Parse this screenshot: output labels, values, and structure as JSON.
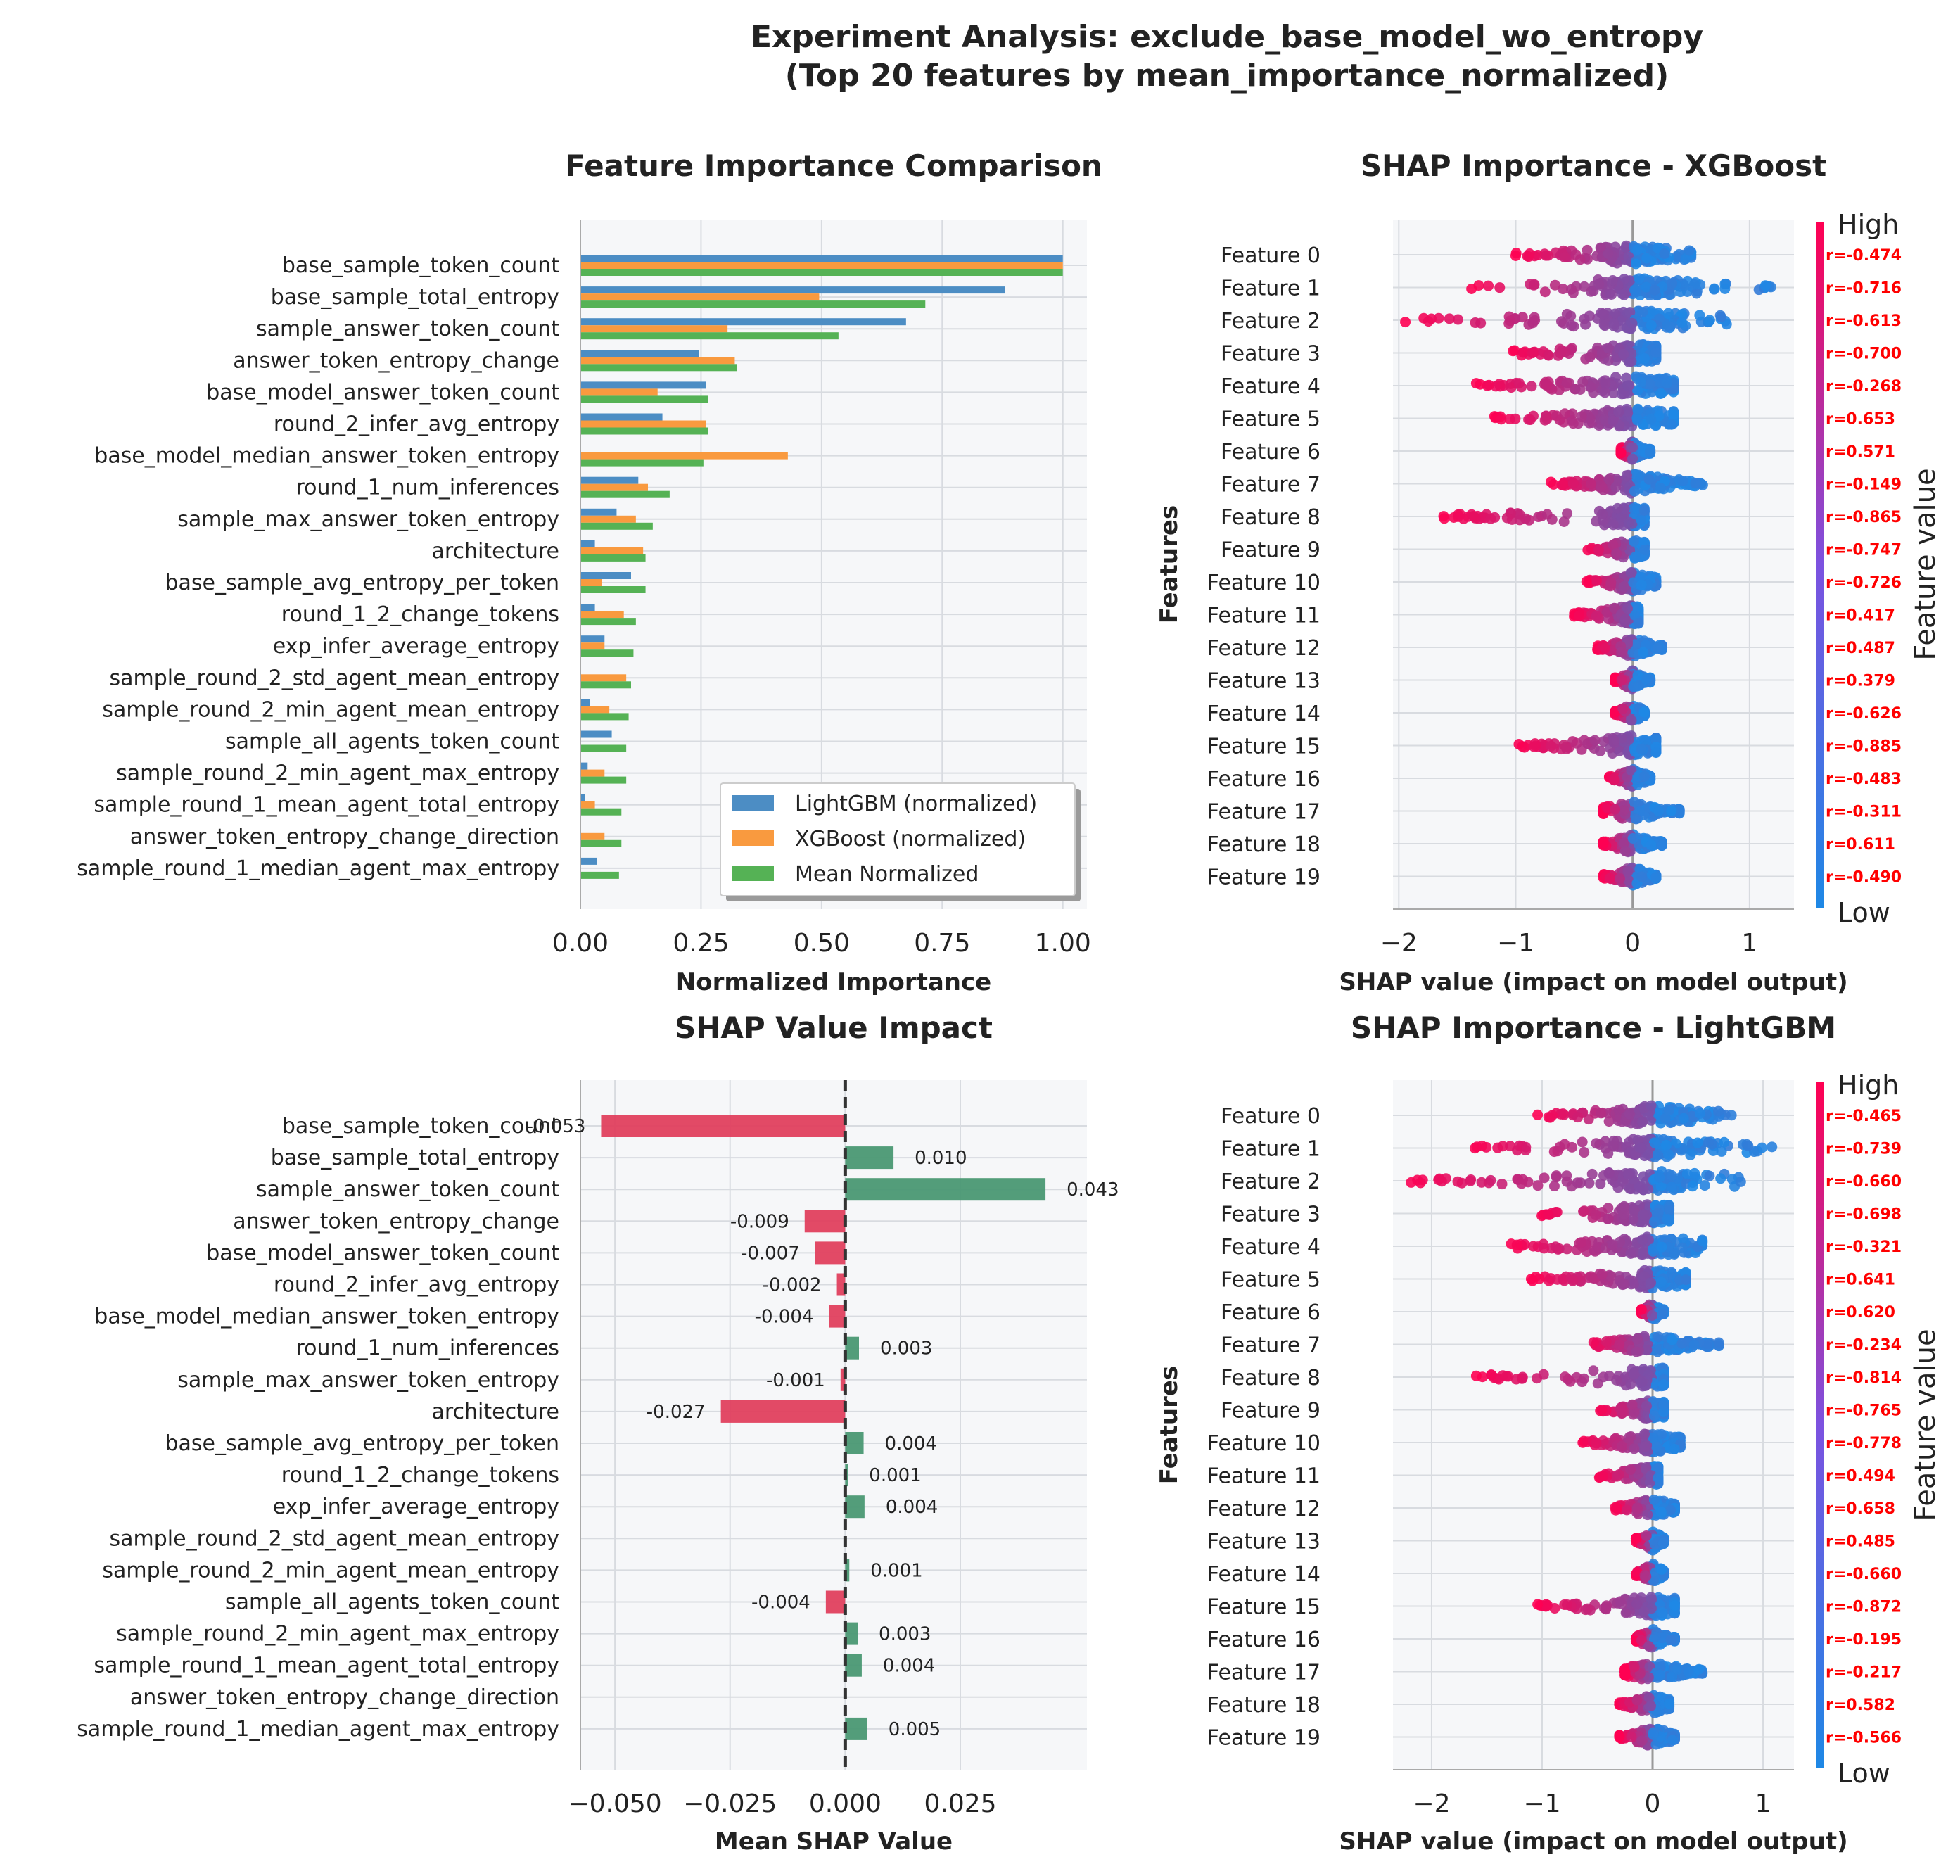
{
  "figure": {
    "title_line1": "Experiment Analysis: exclude_base_model_wo_entropy",
    "title_line2": "(Top 20 features by mean_importance_normalized)"
  },
  "colors": {
    "lightgbm": "#4c8dc4",
    "xgboost": "#f99a3f",
    "mean": "#55b255",
    "positive": "#4a9873",
    "negative": "#e0405e",
    "high": "#ff0052",
    "low": "#1e88e5",
    "panel_bg": "#f6f7f9",
    "grid": "#d8dbe0"
  },
  "chart_data": [
    {
      "id": "importance",
      "type": "bar",
      "orientation": "horizontal",
      "title": "Feature Importance Comparison",
      "xlabel": "Normalized Importance",
      "ylabel": "",
      "xlim": [
        0,
        1.05
      ],
      "xticks": [
        0,
        0.25,
        0.5,
        0.75,
        1.0
      ],
      "xtick_labels": [
        "0.00",
        "0.25",
        "0.50",
        "0.75",
        "1.00"
      ],
      "categories": [
        "base_sample_token_count",
        "base_sample_total_entropy",
        "sample_answer_token_count",
        "answer_token_entropy_change",
        "base_model_answer_token_count",
        "round_2_infer_avg_entropy",
        "base_model_median_answer_token_entropy",
        "round_1_num_inferences",
        "sample_max_answer_token_entropy",
        "architecture",
        "base_sample_avg_entropy_per_token",
        "round_1_2_change_tokens",
        "exp_infer_average_entropy",
        "sample_round_2_std_agent_mean_entropy",
        "sample_round_2_min_agent_mean_entropy",
        "sample_all_agents_token_count",
        "sample_round_2_min_agent_max_entropy",
        "sample_round_1_mean_agent_total_entropy",
        "answer_token_entropy_change_direction",
        "sample_round_1_median_agent_max_entropy"
      ],
      "series": [
        {
          "name": "LightGBM (normalized)",
          "values": [
            1.0,
            0.88,
            0.675,
            0.245,
            0.26,
            0.17,
            0.0,
            0.12,
            0.075,
            0.03,
            0.105,
            0.03,
            0.05,
            0.0,
            0.02,
            0.065,
            0.015,
            0.01,
            0.0,
            0.035
          ]
        },
        {
          "name": "XGBoost (normalized)",
          "values": [
            1.0,
            0.495,
            0.305,
            0.32,
            0.16,
            0.26,
            0.43,
            0.14,
            0.115,
            0.13,
            0.045,
            0.09,
            0.05,
            0.095,
            0.06,
            0.0,
            0.05,
            0.03,
            0.05,
            0.0
          ]
        },
        {
          "name": "Mean Normalized",
          "values": [
            1.0,
            0.715,
            0.535,
            0.325,
            0.265,
            0.265,
            0.255,
            0.185,
            0.15,
            0.135,
            0.135,
            0.115,
            0.11,
            0.105,
            0.1,
            0.095,
            0.095,
            0.085,
            0.085,
            0.08
          ]
        }
      ],
      "legend_position": "lower-right"
    },
    {
      "id": "shap_xgb",
      "type": "scatter",
      "subtype": "shap-beeswarm",
      "title": "SHAP Importance - XGBoost",
      "xlabel": "SHAP value (impact on model output)",
      "ylabel": "Features",
      "xlim": [
        -2.05,
        1.38
      ],
      "xticks": [
        -2,
        -1,
        0,
        1
      ],
      "xtick_labels": [
        "−2",
        "−1",
        "0",
        "1"
      ],
      "features": [
        "Feature 0",
        "Feature 1",
        "Feature 2",
        "Feature 3",
        "Feature 4",
        "Feature 5",
        "Feature 6",
        "Feature 7",
        "Feature 8",
        "Feature 9",
        "Feature 10",
        "Feature 11",
        "Feature 12",
        "Feature 13",
        "Feature 14",
        "Feature 15",
        "Feature 16",
        "Feature 17",
        "Feature 18",
        "Feature 19"
      ],
      "correlation_labels": [
        "r=-0.474",
        "r=-0.716",
        "r=-0.613",
        "r=-0.700",
        "r=-0.268",
        "r=0.653",
        "r=0.571",
        "r=-0.149",
        "r=-0.865",
        "r=-0.747",
        "r=-0.726",
        "r=0.417",
        "r=0.487",
        "r=0.379",
        "r=-0.626",
        "r=-0.885",
        "r=-0.483",
        "r=-0.311",
        "r=0.611",
        "r=-0.490"
      ],
      "ranges": [
        [
          -1.0,
          0.5
        ],
        [
          -1.4,
          1.25
        ],
        [
          -1.95,
          0.9
        ],
        [
          -1.05,
          0.2
        ],
        [
          -1.35,
          0.35
        ],
        [
          -1.2,
          0.35
        ],
        [
          -0.1,
          0.15
        ],
        [
          -0.7,
          0.6
        ],
        [
          -1.65,
          0.1
        ],
        [
          -0.4,
          0.1
        ],
        [
          -0.4,
          0.2
        ],
        [
          -0.5,
          0.05
        ],
        [
          -0.3,
          0.25
        ],
        [
          -0.15,
          0.15
        ],
        [
          -0.15,
          0.1
        ],
        [
          -1.0,
          0.2
        ],
        [
          -0.2,
          0.15
        ],
        [
          -0.25,
          0.4
        ],
        [
          -0.25,
          0.25
        ],
        [
          -0.25,
          0.2
        ]
      ],
      "colorbar": {
        "label": "Feature value",
        "high": "High",
        "low": "Low"
      }
    },
    {
      "id": "mean_shap",
      "type": "bar",
      "orientation": "horizontal",
      "title": "SHAP Value Impact",
      "xlabel": "Mean SHAP Value",
      "ylabel": "",
      "xlim": [
        -0.0575,
        0.0525
      ],
      "xticks": [
        -0.05,
        -0.025,
        0.0,
        0.025
      ],
      "xtick_labels": [
        "−0.050",
        "−0.025",
        "0.000",
        "0.025"
      ],
      "categories": [
        "base_sample_token_count",
        "base_sample_total_entropy",
        "sample_answer_token_count",
        "answer_token_entropy_change",
        "base_model_answer_token_count",
        "round_2_infer_avg_entropy",
        "base_model_median_answer_token_entropy",
        "round_1_num_inferences",
        "sample_max_answer_token_entropy",
        "architecture",
        "base_sample_avg_entropy_per_token",
        "round_1_2_change_tokens",
        "exp_infer_average_entropy",
        "sample_round_2_std_agent_mean_entropy",
        "sample_round_2_min_agent_mean_entropy",
        "sample_all_agents_token_count",
        "sample_round_2_min_agent_max_entropy",
        "sample_round_1_mean_agent_total_entropy",
        "answer_token_entropy_change_direction",
        "sample_round_1_median_agent_max_entropy"
      ],
      "values": [
        -0.053,
        0.0105,
        0.0435,
        -0.0088,
        -0.0065,
        -0.0018,
        -0.0035,
        0.003,
        -0.001,
        -0.027,
        0.004,
        0.0006,
        0.0042,
        0.0,
        0.0009,
        -0.0042,
        0.0027,
        0.0036,
        0.0,
        0.0048
      ],
      "value_labels": [
        "-0.053",
        "0.010",
        "0.043",
        "-0.009",
        "-0.007",
        "-0.002",
        "-0.004",
        "0.003",
        "-0.001",
        "-0.027",
        "0.004",
        "0.001",
        "0.004",
        "",
        "0.001",
        "-0.004",
        "0.003",
        "0.004",
        "",
        "0.005"
      ]
    },
    {
      "id": "shap_lgbm",
      "type": "scatter",
      "subtype": "shap-beeswarm",
      "title": "SHAP Importance - LightGBM",
      "xlabel": "SHAP value (impact on model output)",
      "ylabel": "Features",
      "xlim": [
        -2.35,
        1.28
      ],
      "xticks": [
        -2,
        -1,
        0,
        1
      ],
      "xtick_labels": [
        "−2",
        "−1",
        "0",
        "1"
      ],
      "features": [
        "Feature 0",
        "Feature 1",
        "Feature 2",
        "Feature 3",
        "Feature 4",
        "Feature 5",
        "Feature 6",
        "Feature 7",
        "Feature 8",
        "Feature 9",
        "Feature 10",
        "Feature 11",
        "Feature 12",
        "Feature 13",
        "Feature 14",
        "Feature 15",
        "Feature 16",
        "Feature 17",
        "Feature 18",
        "Feature 19"
      ],
      "correlation_labels": [
        "r=-0.465",
        "r=-0.739",
        "r=-0.660",
        "r=-0.698",
        "r=-0.321",
        "r=0.641",
        "r=0.620",
        "r=-0.234",
        "r=-0.814",
        "r=-0.765",
        "r=-0.778",
        "r=0.494",
        "r=0.658",
        "r=0.485",
        "r=-0.660",
        "r=-0.872",
        "r=-0.195",
        "r=-0.217",
        "r=0.582",
        "r=-0.566"
      ],
      "ranges": [
        [
          -1.05,
          0.75
        ],
        [
          -1.65,
          1.1
        ],
        [
          -2.25,
          0.95
        ],
        [
          -1.05,
          0.15
        ],
        [
          -1.3,
          0.45
        ],
        [
          -1.1,
          0.3
        ],
        [
          -0.1,
          0.1
        ],
        [
          -0.6,
          0.6
        ],
        [
          -1.6,
          0.1
        ],
        [
          -0.5,
          0.1
        ],
        [
          -0.65,
          0.25
        ],
        [
          -0.5,
          0.05
        ],
        [
          -0.35,
          0.2
        ],
        [
          -0.15,
          0.1
        ],
        [
          -0.15,
          0.1
        ],
        [
          -1.05,
          0.2
        ],
        [
          -0.15,
          0.2
        ],
        [
          -0.25,
          0.45
        ],
        [
          -0.3,
          0.15
        ],
        [
          -0.3,
          0.2
        ]
      ],
      "colorbar": {
        "label": "Feature value",
        "high": "High",
        "low": "Low"
      }
    }
  ]
}
